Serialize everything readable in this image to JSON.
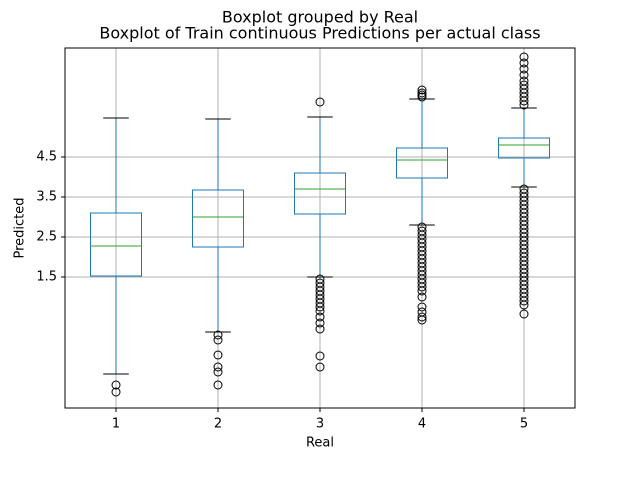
{
  "chart_data": {
    "type": "box",
    "suptitle": "Boxplot grouped by Real",
    "title": "Boxplot of Train continuous Predictions per actual class",
    "x_label": "Real",
    "y_label": "Predicted",
    "categories": [
      "1",
      "2",
      "3",
      "4",
      "5"
    ],
    "box_color": "#1f77b4",
    "median_color": "#2ca02c",
    "whisker_color": "#1f77b4",
    "cap_color": "#000000",
    "grid": true,
    "ylim": [
      -1.775,
      7.225
    ],
    "yticks": [
      1.5,
      2.5,
      3.5,
      4.5
    ],
    "boxes": [
      {
        "whisker_low": -0.925,
        "q1": 1.525,
        "median": 2.275,
        "q3": 3.1,
        "whisker_high": 5.475,
        "outliers": [
          -1.2,
          -1.375
        ]
      },
      {
        "whisker_low": 0.125,
        "q1": 2.25,
        "median": 3.0,
        "q3": 3.675,
        "whisker_high": 5.45,
        "outliers": [
          0.05,
          -0.075,
          -0.45,
          -0.75,
          -0.875,
          -1.2
        ]
      },
      {
        "whisker_low": 1.5,
        "q1": 3.075,
        "median": 3.7,
        "q3": 4.1,
        "whisker_high": 5.5,
        "outliers": [
          5.875,
          1.45,
          1.35,
          1.25,
          1.15,
          1.05,
          0.95,
          0.85,
          0.75,
          0.65,
          0.5,
          0.35,
          0.2,
          -0.475,
          -0.75
        ]
      },
      {
        "whisker_low": 2.8,
        "q1": 3.975,
        "median": 4.425,
        "q3": 4.725,
        "whisker_high": 5.95,
        "outliers": [
          6.175,
          6.1,
          6.05,
          6.0,
          2.75,
          2.65,
          2.55,
          2.45,
          2.35,
          2.25,
          2.15,
          2.05,
          1.95,
          1.85,
          1.75,
          1.65,
          1.55,
          1.45,
          1.35,
          1.25,
          1.15,
          1.0,
          0.75,
          0.625,
          0.5,
          0.425
        ]
      },
      {
        "whisker_low": 3.75,
        "q1": 4.475,
        "median": 4.8,
        "q3": 4.975,
        "whisker_high": 5.725,
        "outliers": [
          7.0,
          6.85,
          6.7,
          6.55,
          6.4,
          6.3,
          6.2,
          6.1,
          6.0,
          5.9,
          5.8,
          3.7,
          3.6,
          3.5,
          3.4,
          3.3,
          3.2,
          3.1,
          3.0,
          2.9,
          2.8,
          2.7,
          2.6,
          2.5,
          2.4,
          2.3,
          2.2,
          2.1,
          2.0,
          1.9,
          1.8,
          1.7,
          1.6,
          1.5,
          1.4,
          1.3,
          1.2,
          1.1,
          1.0,
          0.9,
          0.8,
          0.575
        ]
      }
    ]
  }
}
